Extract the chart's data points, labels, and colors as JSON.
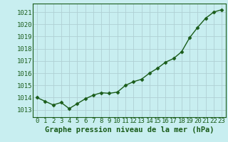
{
  "x": [
    0,
    1,
    2,
    3,
    4,
    5,
    6,
    7,
    8,
    9,
    10,
    11,
    12,
    13,
    14,
    15,
    16,
    17,
    18,
    19,
    20,
    21,
    22,
    23
  ],
  "y": [
    1014.0,
    1013.7,
    1013.4,
    1013.6,
    1013.1,
    1013.5,
    1013.9,
    1014.2,
    1014.4,
    1014.35,
    1014.45,
    1015.0,
    1015.3,
    1015.5,
    1016.0,
    1016.4,
    1016.9,
    1017.2,
    1017.75,
    1018.9,
    1019.75,
    1020.5,
    1021.0,
    1021.2
  ],
  "line_color": "#1a5c1a",
  "marker": "D",
  "marker_size": 2.5,
  "linewidth": 1.0,
  "bg_color": "#c8eef0",
  "grid_color": "#b0d0d4",
  "xlabel": "Graphe pression niveau de la mer (hPa)",
  "xlabel_fontsize": 7.5,
  "xlabel_color": "#1a5c1a",
  "ytick_labels": [
    1013,
    1014,
    1015,
    1016,
    1017,
    1018,
    1019,
    1020,
    1021
  ],
  "ylim": [
    1012.4,
    1021.7
  ],
  "xlim": [
    -0.5,
    23.5
  ],
  "tick_fontsize": 6.5,
  "tick_color": "#1a5c1a",
  "xtick_labels": [
    "0",
    "1",
    "2",
    "3",
    "4",
    "5",
    "6",
    "7",
    "8",
    "9",
    "10",
    "11",
    "12",
    "13",
    "14",
    "15",
    "16",
    "17",
    "18",
    "19",
    "20",
    "21",
    "22",
    "23"
  ]
}
